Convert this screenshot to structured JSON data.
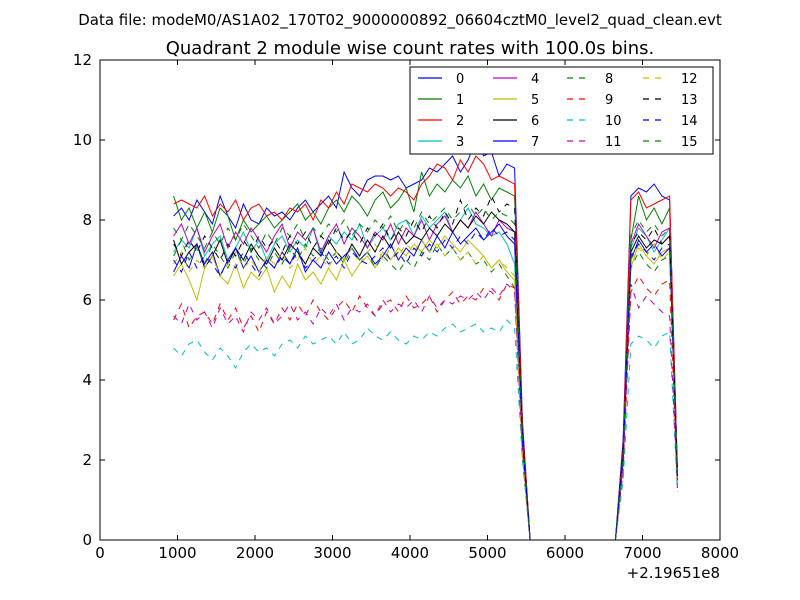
{
  "header": {
    "datafile": "Data file: modeM0/AS1A02_170T02_9000000892_06604cztM0_level2_quad_clean.evt"
  },
  "chart_data": {
    "type": "line",
    "title": "Quadrant 2 module wise count rates with 100.0s bins.",
    "xlabel": "",
    "ylabel": "",
    "x_offset_label": "+2.19651e8",
    "xlim": [
      0,
      8000
    ],
    "ylim": [
      0,
      12
    ],
    "x_ticks": [
      0,
      1000,
      2000,
      3000,
      4000,
      5000,
      6000,
      7000,
      8000
    ],
    "y_ticks": [
      0,
      2,
      4,
      6,
      8,
      10,
      12
    ],
    "grid": false,
    "legend_position": "top-right",
    "x": [
      950,
      1050,
      1150,
      1250,
      1350,
      1450,
      1550,
      1650,
      1750,
      1850,
      1950,
      2050,
      2150,
      2250,
      2350,
      2450,
      2550,
      2650,
      2750,
      2850,
      2950,
      3050,
      3150,
      3250,
      3350,
      3450,
      3550,
      3650,
      3750,
      3850,
      3950,
      4050,
      4150,
      4250,
      4350,
      4450,
      4550,
      4650,
      4750,
      4850,
      4950,
      5050,
      5150,
      5250,
      5350,
      5450,
      5550,
      5650,
      5750,
      5850,
      5950,
      6050,
      6150,
      6250,
      6350,
      6450,
      6550,
      6650,
      6750,
      6850,
      6950,
      7050,
      7150,
      7250,
      7350,
      7450
    ],
    "series": [
      {
        "name": "0",
        "color": "#0000ff",
        "dash": "solid",
        "values": [
          8.1,
          8.3,
          8.0,
          8.5,
          8.2,
          7.9,
          8.6,
          8.1,
          7.8,
          8.4,
          8.0,
          7.9,
          8.3,
          8.1,
          8.2,
          8.0,
          8.3,
          8.5,
          8.2,
          8.4,
          8.6,
          8.3,
          9.2,
          8.8,
          8.6,
          9.0,
          9.1,
          9.1,
          9.0,
          9.1,
          8.8,
          8.9,
          9.0,
          9.3,
          9.2,
          9.4,
          9.6,
          9.2,
          9.5,
          10.0,
          9.6,
          9.7,
          9.1,
          9.4,
          9.3,
          3.0,
          0.0,
          0.0,
          0.0,
          0.0,
          0.0,
          0.0,
          0.0,
          0.0,
          0.0,
          0.0,
          0.0,
          0.0,
          2.5,
          8.6,
          8.8,
          8.7,
          8.9,
          8.6,
          8.5,
          1.8
        ]
      },
      {
        "name": "1",
        "color": "#008000",
        "dash": "solid",
        "values": [
          8.6,
          8.0,
          8.3,
          7.8,
          8.2,
          7.7,
          8.3,
          8.1,
          7.5,
          8.0,
          7.7,
          7.9,
          8.1,
          7.8,
          8.0,
          8.2,
          8.4,
          8.0,
          8.2,
          7.9,
          8.3,
          8.5,
          8.2,
          8.6,
          8.4,
          8.1,
          8.5,
          8.7,
          8.3,
          8.5,
          8.8,
          8.2,
          9.2,
          8.6,
          8.9,
          8.7,
          9.0,
          8.8,
          9.1,
          8.6,
          8.9,
          8.5,
          8.8,
          8.7,
          8.6,
          2.8,
          0.0,
          0.0,
          0.0,
          0.0,
          0.0,
          0.0,
          0.0,
          0.0,
          0.0,
          0.0,
          0.0,
          0.0,
          2.2,
          7.5,
          8.6,
          8.0,
          8.3,
          7.9,
          8.3,
          1.6
        ]
      },
      {
        "name": "2",
        "color": "#ff0000",
        "dash": "solid",
        "values": [
          8.4,
          8.5,
          8.4,
          8.3,
          8.6,
          8.1,
          8.4,
          8.2,
          8.5,
          8.0,
          8.3,
          8.4,
          8.1,
          8.2,
          8.0,
          8.3,
          8.2,
          8.4,
          8.0,
          8.5,
          8.3,
          8.7,
          8.4,
          8.9,
          8.8,
          8.7,
          8.9,
          8.8,
          8.6,
          8.8,
          8.7,
          8.5,
          8.9,
          9.1,
          9.4,
          9.3,
          9.0,
          9.5,
          9.2,
          9.6,
          9.4,
          9.0,
          9.1,
          9.0,
          8.9,
          2.9,
          0.0,
          0.0,
          0.0,
          0.0,
          0.0,
          0.0,
          0.0,
          0.0,
          0.0,
          0.0,
          0.0,
          0.0,
          2.3,
          8.5,
          8.7,
          8.3,
          8.4,
          8.5,
          8.6,
          1.7
        ]
      },
      {
        "name": "3",
        "color": "#00bfbf",
        "dash": "solid",
        "values": [
          7.2,
          7.5,
          7.3,
          7.8,
          7.1,
          7.4,
          7.6,
          7.0,
          7.3,
          7.7,
          7.2,
          7.5,
          7.0,
          7.4,
          7.6,
          7.2,
          7.5,
          7.3,
          7.8,
          7.1,
          7.6,
          7.4,
          7.7,
          7.5,
          7.9,
          7.3,
          7.6,
          7.8,
          7.5,
          7.9,
          8.0,
          7.6,
          8.1,
          7.8,
          8.0,
          8.2,
          7.7,
          8.0,
          8.3,
          7.9,
          7.8,
          7.6,
          7.7,
          7.4,
          6.9,
          2.5,
          0.0,
          0.0,
          0.0,
          0.0,
          0.0,
          0.0,
          0.0,
          0.0,
          0.0,
          0.0,
          0.0,
          0.0,
          2.0,
          7.3,
          7.8,
          7.6,
          7.2,
          7.5,
          7.8,
          1.5
        ]
      },
      {
        "name": "4",
        "color": "#bf00bf",
        "dash": "solid",
        "values": [
          7.6,
          7.9,
          7.4,
          7.8,
          7.2,
          7.6,
          7.9,
          7.3,
          7.7,
          7.4,
          7.8,
          7.5,
          7.2,
          7.6,
          7.9,
          7.3,
          7.7,
          7.5,
          7.8,
          7.2,
          7.6,
          7.9,
          7.4,
          7.8,
          7.6,
          7.3,
          7.7,
          7.5,
          7.9,
          7.4,
          7.8,
          7.6,
          8.0,
          7.5,
          7.9,
          8.1,
          7.7,
          8.0,
          7.8,
          8.2,
          7.9,
          7.6,
          8.0,
          7.8,
          7.7,
          2.6,
          0.0,
          0.0,
          0.0,
          0.0,
          0.0,
          0.0,
          0.0,
          0.0,
          0.0,
          0.0,
          0.0,
          0.0,
          2.1,
          7.4,
          7.9,
          7.6,
          7.3,
          7.7,
          7.8,
          1.6
        ]
      },
      {
        "name": "5",
        "color": "#bfbf00",
        "dash": "solid",
        "values": [
          6.6,
          6.9,
          6.5,
          6.0,
          6.8,
          7.1,
          6.6,
          6.4,
          6.9,
          6.3,
          6.7,
          6.5,
          6.8,
          6.2,
          6.6,
          6.3,
          6.9,
          6.5,
          6.7,
          6.4,
          6.8,
          6.5,
          7.0,
          6.6,
          6.9,
          7.1,
          6.8,
          7.2,
          7.0,
          7.3,
          7.1,
          7.4,
          7.2,
          7.5,
          7.3,
          7.6,
          7.4,
          7.2,
          7.5,
          7.3,
          7.1,
          6.8,
          7.0,
          6.7,
          6.5,
          2.2,
          0.0,
          0.0,
          0.0,
          0.0,
          0.0,
          0.0,
          0.0,
          0.0,
          0.0,
          0.0,
          0.0,
          0.0,
          1.9,
          6.8,
          7.4,
          7.1,
          6.9,
          7.2,
          7.3,
          1.4
        ]
      },
      {
        "name": "6",
        "color": "#000000",
        "dash": "solid",
        "values": [
          7.5,
          6.9,
          7.2,
          7.4,
          6.8,
          7.1,
          7.5,
          6.9,
          7.3,
          7.0,
          7.4,
          7.1,
          6.9,
          7.3,
          7.0,
          7.4,
          7.2,
          6.9,
          7.3,
          7.1,
          7.5,
          7.2,
          7.0,
          7.4,
          7.1,
          7.5,
          7.2,
          7.6,
          7.3,
          7.7,
          7.4,
          7.6,
          7.5,
          7.8,
          7.6,
          7.9,
          7.7,
          8.0,
          7.8,
          8.1,
          7.9,
          8.2,
          8.0,
          7.9,
          7.7,
          2.6,
          0.0,
          0.0,
          0.0,
          0.0,
          0.0,
          0.0,
          0.0,
          0.0,
          0.0,
          0.0,
          0.0,
          0.0,
          2.1,
          7.2,
          7.6,
          7.3,
          7.5,
          7.4,
          7.6,
          1.5
        ]
      },
      {
        "name": "7",
        "color": "#0000ff",
        "dash": "solid",
        "values": [
          6.7,
          7.1,
          6.8,
          7.4,
          6.9,
          7.2,
          6.6,
          7.0,
          7.3,
          6.8,
          7.1,
          6.7,
          7.0,
          6.8,
          7.2,
          6.9,
          7.3,
          6.7,
          7.0,
          6.8,
          7.2,
          6.9,
          7.1,
          7.3,
          7.0,
          7.2,
          6.9,
          7.1,
          7.4,
          7.0,
          7.3,
          7.1,
          7.5,
          7.2,
          7.6,
          7.3,
          7.7,
          7.4,
          7.6,
          7.8,
          7.5,
          7.7,
          7.9,
          7.6,
          7.4,
          2.4,
          0.0,
          0.0,
          0.0,
          0.0,
          0.0,
          0.0,
          0.0,
          0.0,
          0.0,
          0.0,
          0.0,
          0.0,
          2.0,
          7.0,
          7.5,
          7.2,
          7.4,
          7.1,
          7.3,
          1.5
        ]
      },
      {
        "name": "8",
        "color": "#008000",
        "dash": "dashed",
        "values": [
          7.1,
          7.5,
          7.0,
          7.3,
          6.9,
          7.4,
          7.1,
          6.8,
          7.2,
          6.9,
          7.3,
          7.0,
          6.8,
          7.2,
          6.9,
          7.3,
          7.0,
          7.4,
          7.1,
          7.3,
          7.0,
          7.2,
          6.9,
          7.3,
          7.0,
          7.2,
          6.8,
          7.1,
          6.9,
          6.7,
          7.0,
          6.8,
          7.2,
          7.0,
          7.4,
          7.1,
          7.3,
          7.0,
          7.2,
          6.9,
          7.0,
          6.7,
          6.9,
          6.6,
          6.3,
          2.1,
          0.0,
          0.0,
          0.0,
          0.0,
          0.0,
          0.0,
          0.0,
          0.0,
          0.0,
          0.0,
          0.0,
          0.0,
          1.8,
          6.8,
          7.2,
          6.9,
          6.7,
          7.0,
          7.1,
          1.4
        ]
      },
      {
        "name": "9",
        "color": "#ff0000",
        "dash": "dashed",
        "values": [
          5.5,
          5.9,
          5.3,
          5.6,
          5.7,
          5.4,
          5.9,
          5.5,
          5.8,
          5.3,
          5.6,
          5.2,
          5.7,
          5.4,
          5.8,
          5.5,
          5.9,
          5.6,
          6.0,
          5.7,
          5.5,
          5.8,
          6.0,
          5.7,
          6.1,
          5.8,
          5.6,
          5.9,
          6.0,
          5.7,
          6.1,
          5.8,
          5.9,
          6.1,
          5.7,
          6.0,
          6.2,
          5.9,
          6.1,
          6.0,
          6.3,
          6.2,
          6.0,
          6.4,
          6.3,
          2.1,
          0.0,
          0.0,
          0.0,
          0.0,
          0.0,
          0.0,
          0.0,
          0.0,
          0.0,
          0.0,
          0.0,
          0.0,
          1.7,
          6.2,
          6.6,
          6.3,
          6.1,
          6.4,
          6.5,
          1.3
        ]
      },
      {
        "name": "10",
        "color": "#00bfbf",
        "dash": "dashed",
        "values": [
          4.8,
          4.6,
          4.9,
          5.0,
          4.7,
          4.5,
          4.8,
          4.6,
          4.3,
          4.7,
          4.9,
          4.7,
          4.8,
          4.6,
          4.9,
          5.0,
          4.8,
          5.1,
          4.9,
          5.0,
          5.1,
          4.9,
          5.2,
          4.9,
          5.0,
          5.3,
          5.1,
          5.0,
          5.2,
          5.0,
          4.9,
          5.1,
          5.0,
          5.2,
          5.1,
          5.3,
          5.4,
          5.2,
          5.3,
          5.4,
          5.2,
          5.3,
          5.2,
          5.5,
          5.3,
          2.0,
          0.0,
          0.0,
          0.0,
          0.0,
          0.0,
          0.0,
          0.0,
          0.0,
          0.0,
          0.0,
          0.0,
          0.0,
          1.5,
          4.9,
          5.1,
          5.0,
          4.8,
          5.1,
          5.2,
          1.2
        ]
      },
      {
        "name": "11",
        "color": "#bf00bf",
        "dash": "dashed",
        "values": [
          5.6,
          5.4,
          5.9,
          5.5,
          5.7,
          5.3,
          5.8,
          5.4,
          5.6,
          5.2,
          5.7,
          5.5,
          5.8,
          5.4,
          5.6,
          5.9,
          5.5,
          5.7,
          5.4,
          5.8,
          5.6,
          5.9,
          5.5,
          5.8,
          5.7,
          5.9,
          5.6,
          6.0,
          5.7,
          5.9,
          5.8,
          6.0,
          5.7,
          6.1,
          5.8,
          6.0,
          5.9,
          6.1,
          6.0,
          6.2,
          6.0,
          6.3,
          6.1,
          6.4,
          6.2,
          2.2,
          0.0,
          0.0,
          0.0,
          0.0,
          0.0,
          0.0,
          0.0,
          0.0,
          0.0,
          0.0,
          0.0,
          0.0,
          1.8,
          6.4,
          5.8,
          6.1,
          5.9,
          5.7,
          5.6,
          1.3
        ]
      },
      {
        "name": "12",
        "color": "#bfbf00",
        "dash": "dashed",
        "values": [
          6.9,
          7.2,
          6.7,
          7.0,
          6.8,
          7.1,
          6.6,
          6.9,
          7.2,
          6.8,
          7.0,
          6.7,
          7.1,
          6.9,
          7.2,
          6.8,
          7.0,
          7.3,
          6.9,
          7.1,
          6.8,
          7.2,
          7.0,
          7.3,
          6.9,
          7.2,
          7.4,
          7.0,
          7.3,
          7.1,
          7.4,
          7.2,
          7.5,
          7.2,
          7.4,
          7.1,
          7.3,
          7.0,
          7.2,
          6.9,
          7.1,
          6.8,
          7.0,
          6.8,
          6.6,
          2.2,
          0.0,
          0.0,
          0.0,
          0.0,
          0.0,
          0.0,
          0.0,
          0.0,
          0.0,
          0.0,
          0.0,
          0.0,
          1.9,
          7.0,
          7.3,
          7.1,
          7.4,
          7.0,
          7.2,
          1.4
        ]
      },
      {
        "name": "13",
        "color": "#000000",
        "dash": "dashed",
        "values": [
          7.4,
          7.1,
          7.5,
          7.2,
          7.6,
          7.3,
          7.0,
          7.4,
          7.1,
          7.5,
          7.2,
          7.6,
          7.3,
          7.5,
          7.2,
          7.6,
          7.4,
          7.7,
          7.3,
          7.6,
          7.4,
          7.8,
          7.5,
          7.7,
          7.4,
          7.8,
          7.6,
          7.9,
          7.5,
          7.8,
          7.6,
          8.0,
          7.7,
          8.1,
          7.8,
          8.2,
          7.9,
          8.5,
          8.0,
          8.3,
          8.1,
          8.6,
          8.2,
          8.4,
          8.3,
          2.7,
          0.0,
          0.0,
          0.0,
          0.0,
          0.0,
          0.0,
          0.0,
          0.0,
          0.0,
          0.0,
          0.0,
          0.0,
          2.2,
          7.4,
          7.7,
          7.5,
          7.8,
          7.4,
          7.6,
          1.6
        ]
      },
      {
        "name": "14",
        "color": "#0000ff",
        "dash": "dashed",
        "values": [
          7.0,
          6.7,
          7.2,
          6.8,
          7.1,
          6.9,
          6.6,
          7.0,
          6.8,
          7.2,
          6.9,
          6.6,
          7.0,
          6.8,
          7.1,
          6.9,
          7.2,
          6.8,
          7.0,
          7.2,
          6.9,
          7.1,
          6.8,
          7.2,
          7.0,
          6.9,
          7.1,
          7.3,
          7.0,
          7.2,
          6.9,
          7.3,
          7.1,
          7.4,
          7.2,
          7.5,
          7.3,
          7.6,
          7.4,
          7.7,
          7.5,
          7.8,
          7.6,
          7.7,
          7.5,
          2.5,
          0.0,
          0.0,
          0.0,
          0.0,
          0.0,
          0.0,
          0.0,
          0.0,
          0.0,
          0.0,
          0.0,
          0.0,
          2.0,
          7.1,
          7.4,
          7.2,
          7.0,
          7.3,
          7.4,
          1.5
        ]
      },
      {
        "name": "15",
        "color": "#008000",
        "dash": "dashed",
        "values": [
          7.8,
          7.5,
          7.9,
          7.6,
          7.3,
          7.7,
          7.4,
          7.8,
          7.5,
          7.9,
          7.6,
          7.3,
          7.7,
          7.4,
          7.8,
          7.6,
          7.9,
          7.5,
          7.8,
          7.6,
          7.9,
          7.7,
          8.0,
          7.6,
          7.9,
          7.7,
          8.0,
          7.8,
          8.1,
          7.7,
          8.0,
          7.8,
          8.2,
          7.9,
          8.1,
          8.3,
          8.0,
          8.2,
          8.4,
          8.1,
          8.3,
          8.0,
          8.2,
          8.1,
          7.9,
          2.6,
          0.0,
          0.0,
          0.0,
          0.0,
          0.0,
          0.0,
          0.0,
          0.0,
          0.0,
          0.0,
          0.0,
          0.0,
          2.1,
          7.6,
          8.0,
          7.7,
          7.9,
          7.6,
          7.8,
          1.6
        ]
      }
    ]
  }
}
